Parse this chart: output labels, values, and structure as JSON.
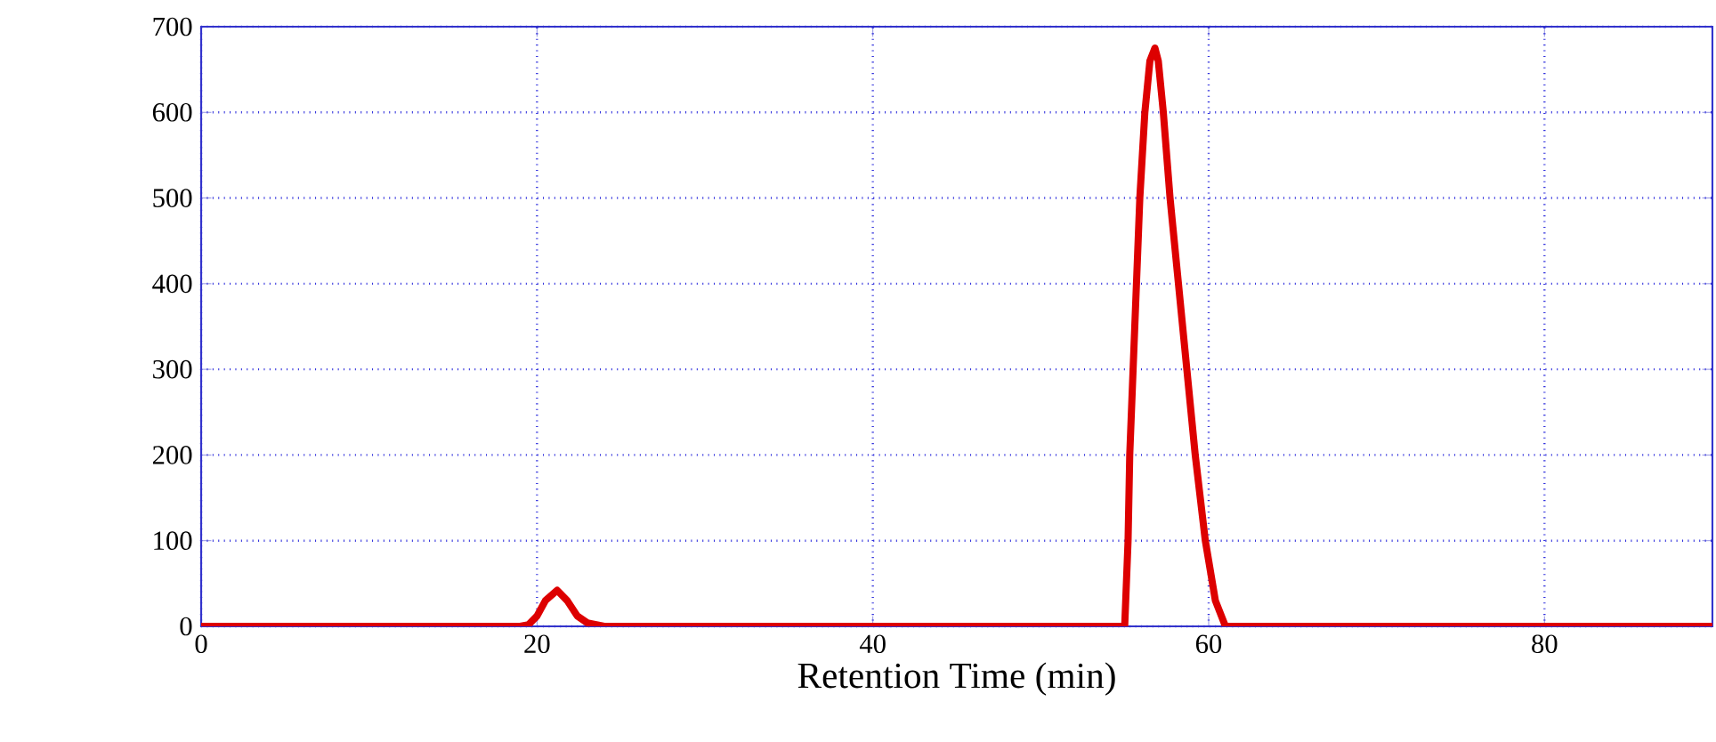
{
  "chart_data": {
    "type": "line",
    "xlabel": "Retention Time (min)",
    "series": [
      {
        "color": "#dd0000",
        "x": [
          0,
          19,
          19.5,
          20,
          20.5,
          21.2,
          21.8,
          22.4,
          23.0,
          23.5,
          24,
          30,
          40,
          50,
          55,
          55.2,
          55.3,
          55.5,
          55.9,
          56.2,
          56.5,
          56.8,
          57.0,
          57.3,
          57.7,
          58.2,
          58.7,
          59.2,
          59.8,
          60.4,
          61.0,
          70,
          80,
          90
        ],
        "values": [
          0,
          0,
          2,
          12,
          30,
          42,
          30,
          12,
          4,
          2,
          0,
          0,
          0,
          0,
          0,
          100,
          200,
          300,
          500,
          600,
          660,
          675,
          660,
          600,
          500,
          400,
          300,
          200,
          100,
          30,
          0,
          0,
          0,
          0
        ]
      }
    ],
    "xlim": [
      0,
      90
    ],
    "xticks": [
      0,
      20,
      40,
      60,
      80
    ],
    "ylim": [
      0,
      700
    ],
    "yticks": [
      0,
      100,
      200,
      300,
      400,
      500,
      600,
      700
    ],
    "grid": true,
    "marker": "none",
    "line_style": "solid"
  }
}
